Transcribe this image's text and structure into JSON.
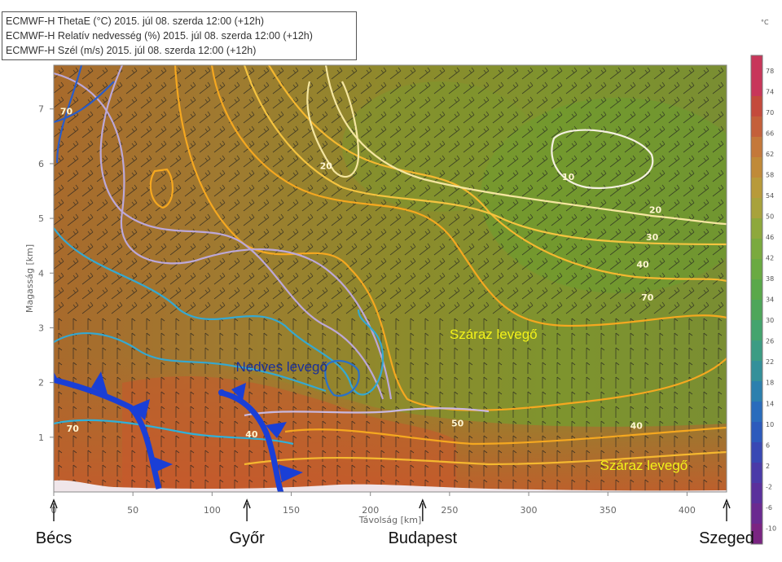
{
  "legend": [
    "ECMWF-H ThetaE (°C) 2015. júl 08. szerda 12:00 (+12h)",
    "ECMWF-H Relatív nedvesség (%) 2015. júl 08. szerda 12:00 (+12h)",
    "ECMWF-H Szél (m/s) 2015. júl 08. szerda 12:00 (+12h)"
  ],
  "colors": {
    "moist": "#b8672e",
    "mid": "#8e8a2c",
    "dry": "#6b9a2e",
    "front": "#1a3fd6",
    "ground": "#f0e6ea"
  },
  "chart_data": {
    "type": "heatmap",
    "xlabel": "Távolság [km]",
    "ylabel": "Magasság [km]",
    "xlim": [
      0,
      425
    ],
    "ylim": [
      0,
      7.8
    ],
    "xticks": [
      0,
      50,
      100,
      150,
      200,
      250,
      300,
      350,
      400
    ],
    "yticks": [
      1,
      2,
      3,
      4,
      5,
      6,
      7
    ],
    "colorbar": {
      "unit": "°C",
      "ticks": [
        78,
        74,
        70,
        66,
        62,
        58,
        54,
        50,
        46,
        42,
        38,
        34,
        30,
        26,
        22,
        18,
        14,
        10,
        6,
        2,
        -2,
        -6,
        -10
      ],
      "colors": [
        "#c8365a",
        "#c8365a",
        "#c44a3c",
        "#c4603a",
        "#c4783a",
        "#c08a38",
        "#b89a3a",
        "#a8a23c",
        "#8ea83c",
        "#7aaa3e",
        "#6aaa42",
        "#5aa84a",
        "#4ea65a",
        "#44a46e",
        "#3c9c84",
        "#34909a",
        "#2c80ae",
        "#2a6cbc",
        "#2c5abc",
        "#3848b4",
        "#4a3aa8",
        "#5a309c",
        "#6a2a90",
        "#7a2482"
      ]
    },
    "contour_labels": [
      {
        "text": "20",
        "x": 172,
        "y": 5.9
      },
      {
        "text": "10",
        "x": 325,
        "y": 5.7
      },
      {
        "text": "20",
        "x": 380,
        "y": 5.1
      },
      {
        "text": "30",
        "x": 378,
        "y": 4.6
      },
      {
        "text": "40",
        "x": 372,
        "y": 4.1
      },
      {
        "text": "70",
        "x": 375,
        "y": 3.5
      },
      {
        "text": "50",
        "x": 255,
        "y": 1.2
      },
      {
        "text": "40",
        "x": 368,
        "y": 1.15
      },
      {
        "text": "70",
        "x": 8,
        "y": 6.9
      },
      {
        "text": "70",
        "x": 12,
        "y": 1.1
      },
      {
        "text": "40",
        "x": 125,
        "y": 1.0
      }
    ],
    "annotations": [
      {
        "text": "Nedves levegő",
        "x": 115,
        "y": 2.2,
        "color": "#1a2f9a"
      },
      {
        "text": "Száraz levegő",
        "x": 250,
        "y": 2.8,
        "color": "#f2f21a"
      },
      {
        "text": "Száraz levegő",
        "x": 345,
        "y": 0.4,
        "color": "#f2f21a"
      }
    ],
    "locations": [
      {
        "name": "Bécs",
        "x": 0
      },
      {
        "name": "Győr",
        "x": 122
      },
      {
        "name": "Budapest",
        "x": 233
      },
      {
        "name": "Szeged",
        "x": 425
      }
    ]
  }
}
